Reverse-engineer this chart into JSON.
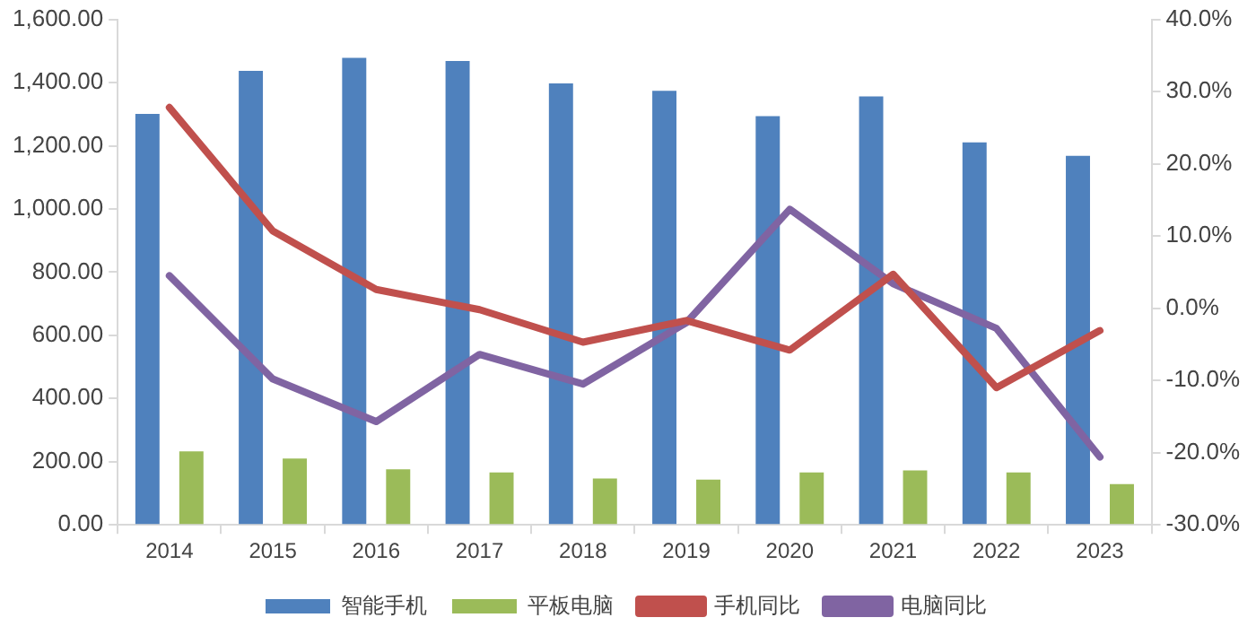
{
  "chart_data": {
    "type": "bar",
    "categories": [
      "2014",
      "2015",
      "2016",
      "2017",
      "2018",
      "2019",
      "2020",
      "2021",
      "2022",
      "2023"
    ],
    "series": [
      {
        "name": "智能手机",
        "color": "#4f81bd",
        "values": [
          1301,
          1437,
          1478,
          1468,
          1397,
          1374,
          1294,
          1356,
          1211,
          1168
        ]
      },
      {
        "name": "平板电脑",
        "color": "#9bbb59",
        "values": [
          233,
          210,
          176,
          166,
          147,
          143,
          166,
          172,
          166,
          129
        ]
      },
      {
        "name": "手机同比",
        "type": "line",
        "axis": "y2",
        "color": "#c0504d",
        "values": [
          27.8,
          10.7,
          2.6,
          -0.2,
          -4.7,
          -1.7,
          -5.8,
          4.7,
          -11,
          -3.1
        ]
      },
      {
        "name": "电脑同比",
        "type": "line",
        "axis": "y2",
        "color": "#8064a2",
        "values": [
          4.5,
          -9.8,
          -15.7,
          -6.4,
          -10.5,
          -2,
          13.7,
          3.4,
          -2.8,
          -20.6
        ]
      }
    ],
    "ylim": [
      0,
      1600
    ],
    "yticks": [
      {
        "value": 0,
        "label": "0.00"
      },
      {
        "value": 200,
        "label": "200.00"
      },
      {
        "value": 400,
        "label": "400.00"
      },
      {
        "value": 600,
        "label": "600.00"
      },
      {
        "value": 800,
        "label": "800.00"
      },
      {
        "value": 1000,
        "label": "1,000.00"
      },
      {
        "value": 1200,
        "label": "1,200.00"
      },
      {
        "value": 1400,
        "label": "1,400.00"
      },
      {
        "value": 1600,
        "label": "1,600.00"
      }
    ],
    "y2lim": [
      -30,
      40
    ],
    "y2ticks": [
      {
        "value": -30,
        "label": "-30.0%"
      },
      {
        "value": -20,
        "label": "-20.0%"
      },
      {
        "value": -10,
        "label": "-10.0%"
      },
      {
        "value": 0,
        "label": "0.0%"
      },
      {
        "value": 10,
        "label": "10.0%"
      },
      {
        "value": 20,
        "label": "20.0%"
      },
      {
        "value": 30,
        "label": "30.0%"
      },
      {
        "value": 40,
        "label": "40.0%"
      }
    ],
    "legend": "bottom",
    "marker": "none",
    "line_style": "solid"
  }
}
